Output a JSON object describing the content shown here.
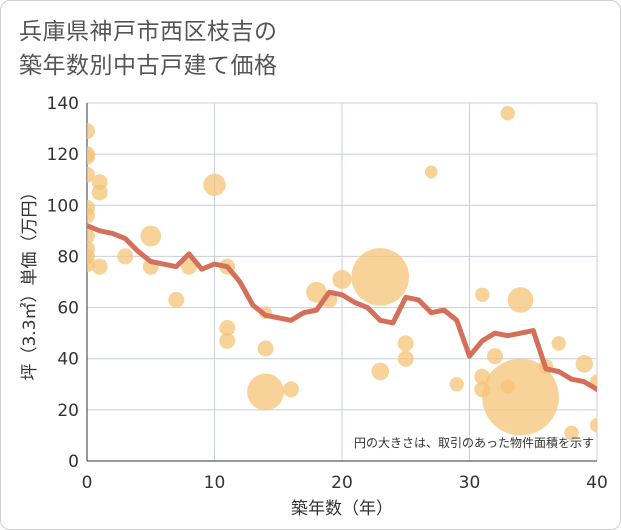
{
  "chart_data": {
    "type": "scatter",
    "title_lines": [
      "兵庫県神戸市西区枝吉の",
      "築年数別中古戸建て価格"
    ],
    "xlabel": "築年数（年）",
    "ylabel": "坪（3.3㎡）単価（万円）",
    "xlim": [
      0,
      40
    ],
    "ylim": [
      0,
      140
    ],
    "xticks": [
      0,
      10,
      20,
      30,
      40
    ],
    "yticks": [
      0,
      20,
      40,
      60,
      80,
      100,
      120,
      140
    ],
    "grid": true,
    "note": "円の大きさは、取引のあった物件面積を示す",
    "colors": {
      "bubble": "#f5c477",
      "line": "#d4705a",
      "grid": "#c8cfe0"
    },
    "bubbles": [
      {
        "x": 0,
        "y": 129,
        "s": 1
      },
      {
        "x": 0,
        "y": 120,
        "s": 1
      },
      {
        "x": 0,
        "y": 119,
        "s": 1
      },
      {
        "x": 0,
        "y": 112,
        "s": 1
      },
      {
        "x": 0,
        "y": 99,
        "s": 1
      },
      {
        "x": 0,
        "y": 96,
        "s": 1
      },
      {
        "x": 0,
        "y": 88,
        "s": 1
      },
      {
        "x": 0,
        "y": 83,
        "s": 1
      },
      {
        "x": 0,
        "y": 80,
        "s": 1
      },
      {
        "x": 0,
        "y": 77,
        "s": 1
      },
      {
        "x": 1,
        "y": 109,
        "s": 1
      },
      {
        "x": 1,
        "y": 105,
        "s": 1
      },
      {
        "x": 1,
        "y": 76,
        "s": 1
      },
      {
        "x": 3,
        "y": 80,
        "s": 1
      },
      {
        "x": 5,
        "y": 88,
        "s": 1.3
      },
      {
        "x": 5,
        "y": 76,
        "s": 1
      },
      {
        "x": 7,
        "y": 63,
        "s": 1
      },
      {
        "x": 8,
        "y": 76,
        "s": 1
      },
      {
        "x": 10,
        "y": 108,
        "s": 1.4
      },
      {
        "x": 11,
        "y": 76,
        "s": 1
      },
      {
        "x": 11,
        "y": 52,
        "s": 1
      },
      {
        "x": 11,
        "y": 47,
        "s": 1
      },
      {
        "x": 14,
        "y": 58,
        "s": 0.8
      },
      {
        "x": 14,
        "y": 44,
        "s": 1
      },
      {
        "x": 14,
        "y": 27,
        "s": 2.3
      },
      {
        "x": 16,
        "y": 28,
        "s": 1
      },
      {
        "x": 18,
        "y": 66,
        "s": 1.3
      },
      {
        "x": 19,
        "y": 63,
        "s": 1
      },
      {
        "x": 20,
        "y": 71,
        "s": 1.2
      },
      {
        "x": 23,
        "y": 72,
        "s": 3.6
      },
      {
        "x": 23,
        "y": 35,
        "s": 1.1
      },
      {
        "x": 25,
        "y": 46,
        "s": 1
      },
      {
        "x": 25,
        "y": 40,
        "s": 1
      },
      {
        "x": 27,
        "y": 113,
        "s": 0.8
      },
      {
        "x": 29,
        "y": 30,
        "s": 0.9
      },
      {
        "x": 31,
        "y": 65,
        "s": 0.9
      },
      {
        "x": 31,
        "y": 33,
        "s": 1
      },
      {
        "x": 31,
        "y": 28,
        "s": 1
      },
      {
        "x": 32,
        "y": 41,
        "s": 1
      },
      {
        "x": 33,
        "y": 136,
        "s": 0.9
      },
      {
        "x": 33,
        "y": 29,
        "s": 0.9
      },
      {
        "x": 34,
        "y": 63,
        "s": 1.6
      },
      {
        "x": 34,
        "y": 25,
        "s": 4.8
      },
      {
        "x": 36,
        "y": 37,
        "s": 0.9
      },
      {
        "x": 37,
        "y": 46,
        "s": 0.9
      },
      {
        "x": 38,
        "y": 11,
        "s": 0.9
      },
      {
        "x": 39,
        "y": 38,
        "s": 1.1
      },
      {
        "x": 40,
        "y": 31,
        "s": 0.9
      },
      {
        "x": 40,
        "y": 14,
        "s": 0.9
      }
    ],
    "trend": {
      "x": [
        0,
        1,
        2,
        3,
        4,
        5,
        6,
        7,
        8,
        9,
        10,
        11,
        12,
        13,
        14,
        15,
        16,
        17,
        18,
        19,
        20,
        21,
        22,
        23,
        24,
        25,
        26,
        27,
        28,
        29,
        30,
        31,
        32,
        33,
        34,
        35,
        36,
        37,
        38,
        39,
        40
      ],
      "y": [
        92,
        90,
        89,
        87,
        82,
        78,
        77,
        76,
        81,
        75,
        77,
        76,
        70,
        61,
        57,
        56,
        55,
        58,
        59,
        66,
        65,
        62,
        60,
        55,
        54,
        64,
        63,
        58,
        59,
        55,
        41,
        47,
        50,
        49,
        50,
        51,
        36,
        35,
        32,
        31,
        28
      ]
    }
  }
}
